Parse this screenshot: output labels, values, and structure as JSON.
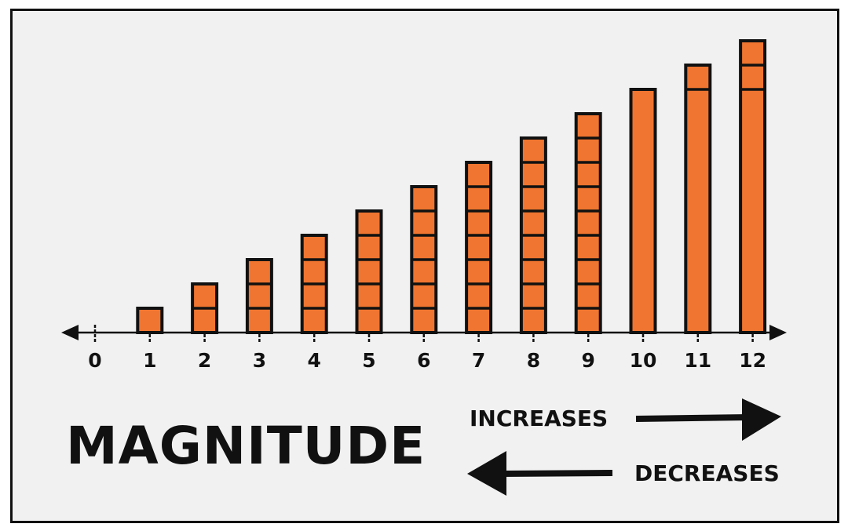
{
  "title": "MAGNITUDE",
  "increases_label": "INCREASES",
  "decreases_label": "DECREASES",
  "colors": {
    "bar": "#ef7530",
    "outline": "#111111",
    "background": "#f0f1f0"
  },
  "chart_data": {
    "type": "bar",
    "categories": [
      "0",
      "1",
      "2",
      "3",
      "4",
      "5",
      "6",
      "7",
      "8",
      "9",
      "10",
      "11",
      "12"
    ],
    "values": [
      0,
      1,
      2,
      3,
      4,
      5,
      6,
      7,
      8,
      9,
      10,
      11,
      12
    ],
    "note_style": "bars 1-9 stacked in unit blocks; bar 10 is a single block of ten; 11 and 12 are a ten-block plus unit blocks",
    "xlim": [
      0,
      12
    ],
    "grid": false
  }
}
